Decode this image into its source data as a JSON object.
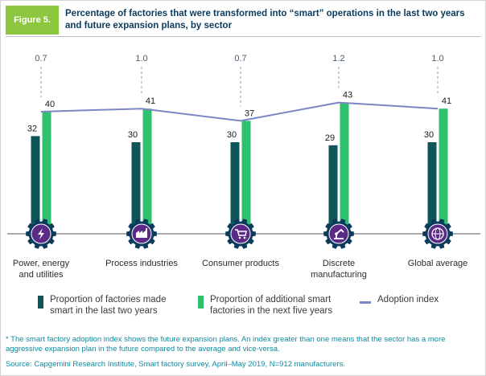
{
  "figure": {
    "label": "Figure 5.",
    "title": "Percentage of factories that were transformed into “smart” operations in the last two years and future expansion plans, by sector"
  },
  "colors": {
    "dark_bar": "#0f5559",
    "light_bar": "#2ec26e",
    "index_line": "#7d86c4",
    "icon_bg": "#0b3b5c",
    "footnote": "#0e8b9e"
  },
  "chart_data": {
    "type": "bar",
    "categories": [
      "Power, energy and utilities",
      "Process industries",
      "Consumer products",
      "Discrete manufacturing",
      "Global average"
    ],
    "category_lines": [
      [
        "Power, energy",
        "and utilities"
      ],
      [
        "Process industries"
      ],
      [
        "Consumer products"
      ],
      [
        "Discrete",
        "manufacturing"
      ],
      [
        "Global average"
      ]
    ],
    "category_icons": [
      "energy-bolt-icon",
      "factory-icon",
      "shopping-cart-icon",
      "robot-arm-icon",
      "globe-icon"
    ],
    "series": [
      {
        "name": "Proportion of factories made smart in the last two years",
        "values": [
          32,
          30,
          30,
          29,
          30
        ]
      },
      {
        "name": "Proportion of additional smart factories in the next five years",
        "values": [
          40,
          41,
          37,
          43,
          41
        ]
      }
    ],
    "adoption_index": {
      "name": "Adoption index",
      "values": [
        "0.7",
        "1.0",
        "0.7",
        "1.2",
        "1.0"
      ],
      "line_y": [
        40,
        41,
        37,
        43,
        41
      ]
    },
    "ylim": [
      0,
      45
    ],
    "xlabel": "",
    "ylabel": ""
  },
  "legend": {
    "dark_lines": [
      "Proportion of factories made",
      "smart in the last two years"
    ],
    "light_lines": [
      "Proportion of additional smart",
      "factories in the next five years"
    ],
    "index": "Adoption index"
  },
  "footnote": {
    "note": "* The smart factory adoption index shows the future expansion plans. An index greater than one means that the sector has a more aggressive expansion plan in the future compared to the average and vice-versa.",
    "source": "Source: Capgemini Research Institute, Smart factory survey, April–May 2019, N=912 manufacturers."
  }
}
